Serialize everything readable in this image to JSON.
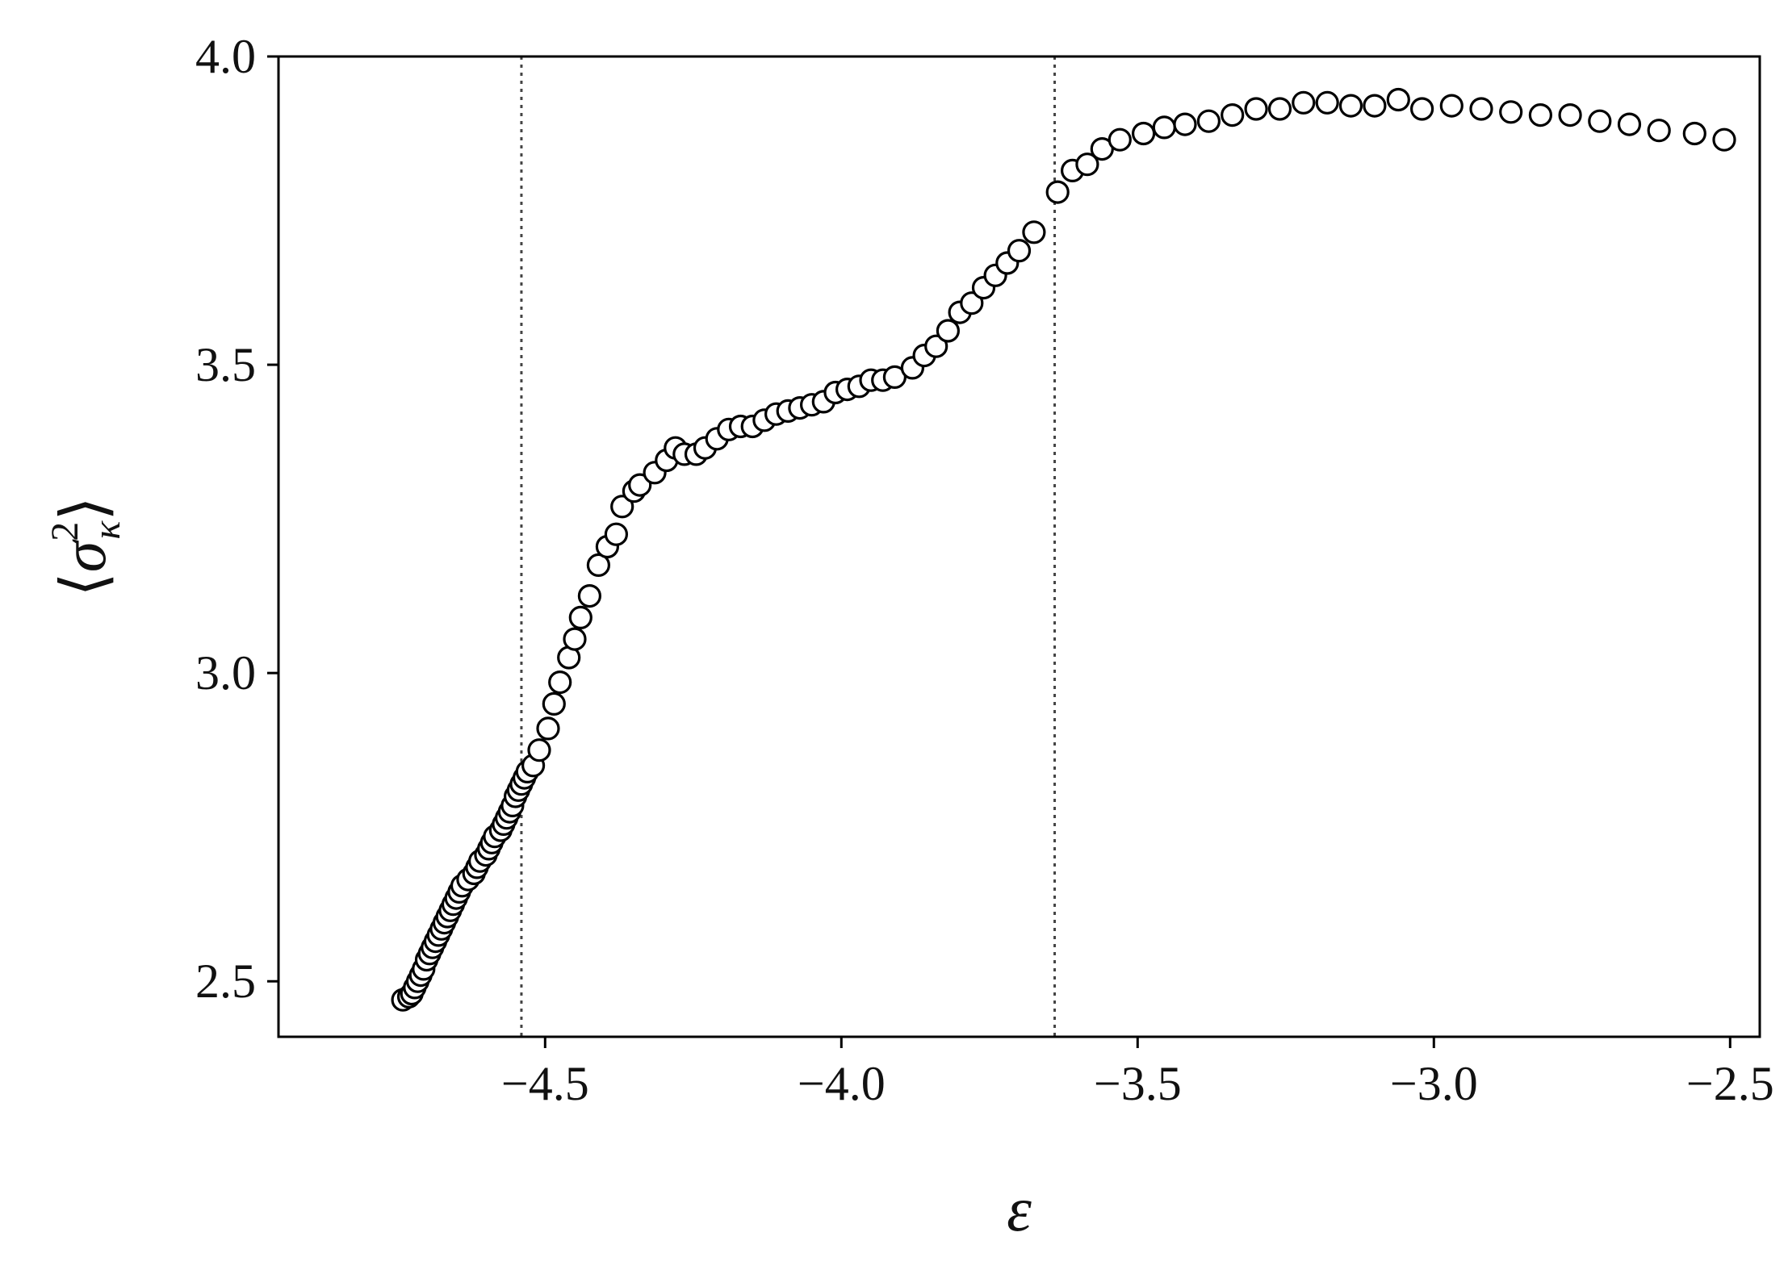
{
  "chart_data": {
    "type": "scatter",
    "xlabel": "ε",
    "ylabel_base": "σ",
    "ylabel_sub": "κ",
    "ylabel_sup": "2",
    "ylabel_left": "⟨",
    "ylabel_right": "⟩",
    "xlim": [
      -4.95,
      -2.45
    ],
    "ylim": [
      2.41,
      4.0
    ],
    "xticks": [
      -4.5,
      -4.0,
      -3.5,
      -3.0,
      -2.5
    ],
    "xtick_labels": [
      "−4.5",
      "−4.0",
      "−3.5",
      "−3.0",
      "−2.5"
    ],
    "yticks": [
      2.5,
      3.0,
      3.5,
      4.0
    ],
    "ytick_labels": [
      "2.5",
      "3.0",
      "3.5",
      "4.0"
    ],
    "vertical_lines": [
      -4.54,
      -3.64
    ],
    "grid": false,
    "marker_style": "open-circle",
    "points": [
      [
        -4.74,
        2.47
      ],
      [
        -4.73,
        2.475
      ],
      [
        -4.725,
        2.48
      ],
      [
        -4.72,
        2.49
      ],
      [
        -4.715,
        2.5
      ],
      [
        -4.71,
        2.51
      ],
      [
        -4.705,
        2.52
      ],
      [
        -4.7,
        2.535
      ],
      [
        -4.695,
        2.545
      ],
      [
        -4.69,
        2.555
      ],
      [
        -4.685,
        2.565
      ],
      [
        -4.68,
        2.575
      ],
      [
        -4.675,
        2.585
      ],
      [
        -4.67,
        2.595
      ],
      [
        -4.665,
        2.605
      ],
      [
        -4.66,
        2.615
      ],
      [
        -4.655,
        2.625
      ],
      [
        -4.65,
        2.635
      ],
      [
        -4.645,
        2.645
      ],
      [
        -4.64,
        2.655
      ],
      [
        -4.63,
        2.665
      ],
      [
        -4.62,
        2.675
      ],
      [
        -4.615,
        2.685
      ],
      [
        -4.61,
        2.695
      ],
      [
        -4.6,
        2.705
      ],
      [
        -4.595,
        2.715
      ],
      [
        -4.59,
        2.725
      ],
      [
        -4.585,
        2.735
      ],
      [
        -4.575,
        2.745
      ],
      [
        -4.57,
        2.755
      ],
      [
        -4.565,
        2.765
      ],
      [
        -4.56,
        2.775
      ],
      [
        -4.555,
        2.785
      ],
      [
        -4.55,
        2.8
      ],
      [
        -4.545,
        2.81
      ],
      [
        -4.54,
        2.82
      ],
      [
        -4.535,
        2.83
      ],
      [
        -4.53,
        2.84
      ],
      [
        -4.52,
        2.85
      ],
      [
        -4.51,
        2.875
      ],
      [
        -4.495,
        2.91
      ],
      [
        -4.485,
        2.95
      ],
      [
        -4.475,
        2.985
      ],
      [
        -4.46,
        3.025
      ],
      [
        -4.45,
        3.055
      ],
      [
        -4.44,
        3.09
      ],
      [
        -4.425,
        3.125
      ],
      [
        -4.41,
        3.175
      ],
      [
        -4.395,
        3.205
      ],
      [
        -4.38,
        3.225
      ],
      [
        -4.37,
        3.27
      ],
      [
        -4.35,
        3.295
      ],
      [
        -4.34,
        3.305
      ],
      [
        -4.315,
        3.325
      ],
      [
        -4.295,
        3.345
      ],
      [
        -4.28,
        3.365
      ],
      [
        -4.265,
        3.355
      ],
      [
        -4.245,
        3.355
      ],
      [
        -4.23,
        3.365
      ],
      [
        -4.21,
        3.38
      ],
      [
        -4.19,
        3.395
      ],
      [
        -4.17,
        3.4
      ],
      [
        -4.15,
        3.4
      ],
      [
        -4.13,
        3.41
      ],
      [
        -4.11,
        3.42
      ],
      [
        -4.09,
        3.425
      ],
      [
        -4.07,
        3.43
      ],
      [
        -4.05,
        3.435
      ],
      [
        -4.03,
        3.44
      ],
      [
        -4.01,
        3.455
      ],
      [
        -3.99,
        3.46
      ],
      [
        -3.97,
        3.465
      ],
      [
        -3.95,
        3.475
      ],
      [
        -3.93,
        3.475
      ],
      [
        -3.91,
        3.48
      ],
      [
        -3.88,
        3.495
      ],
      [
        -3.86,
        3.515
      ],
      [
        -3.84,
        3.53
      ],
      [
        -3.82,
        3.555
      ],
      [
        -3.8,
        3.585
      ],
      [
        -3.78,
        3.6
      ],
      [
        -3.76,
        3.625
      ],
      [
        -3.74,
        3.645
      ],
      [
        -3.72,
        3.665
      ],
      [
        -3.7,
        3.685
      ],
      [
        -3.675,
        3.715
      ],
      [
        -3.635,
        3.78
      ],
      [
        -3.61,
        3.815
      ],
      [
        -3.585,
        3.825
      ],
      [
        -3.56,
        3.85
      ],
      [
        -3.53,
        3.865
      ],
      [
        -3.49,
        3.875
      ],
      [
        -3.455,
        3.885
      ],
      [
        -3.42,
        3.89
      ],
      [
        -3.38,
        3.895
      ],
      [
        -3.34,
        3.905
      ],
      [
        -3.3,
        3.915
      ],
      [
        -3.26,
        3.915
      ],
      [
        -3.22,
        3.925
      ],
      [
        -3.18,
        3.925
      ],
      [
        -3.14,
        3.92
      ],
      [
        -3.1,
        3.92
      ],
      [
        -3.06,
        3.93
      ],
      [
        -3.02,
        3.915
      ],
      [
        -2.97,
        3.92
      ],
      [
        -2.92,
        3.915
      ],
      [
        -2.87,
        3.91
      ],
      [
        -2.82,
        3.905
      ],
      [
        -2.77,
        3.905
      ],
      [
        -2.72,
        3.895
      ],
      [
        -2.67,
        3.89
      ],
      [
        -2.62,
        3.88
      ],
      [
        -2.56,
        3.875
      ],
      [
        -2.51,
        3.865
      ]
    ]
  }
}
